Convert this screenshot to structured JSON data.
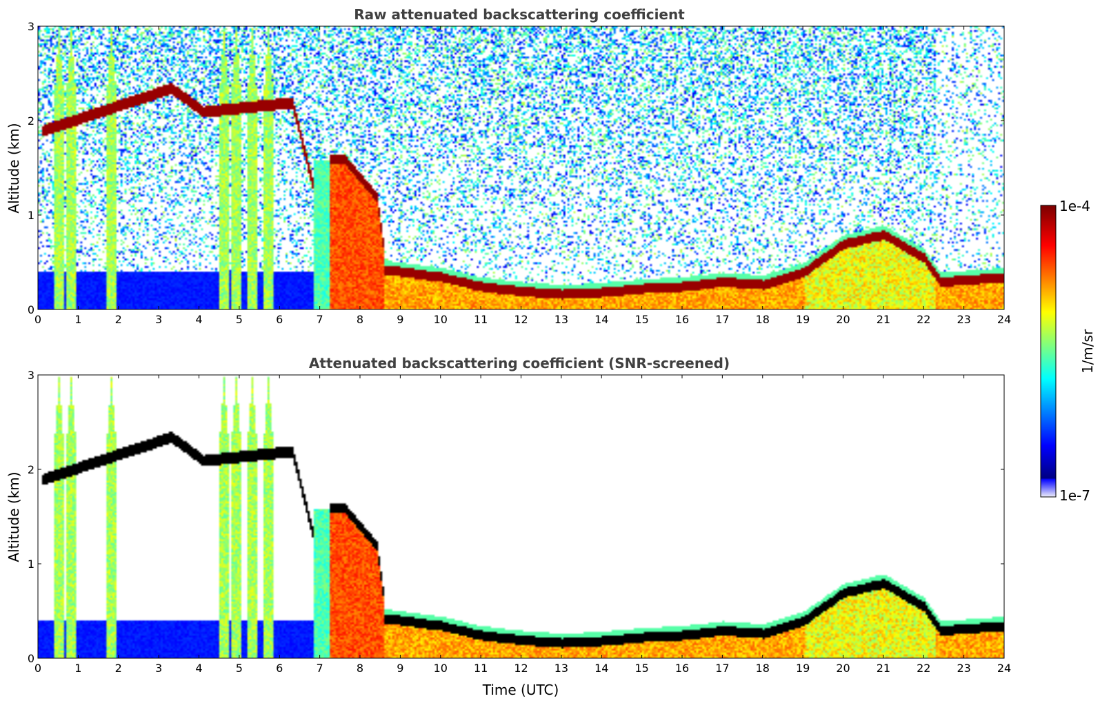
{
  "chart_data": [
    {
      "type": "heatmap",
      "title": "Raw attenuated backscattering coefficient",
      "xlabel": "",
      "ylabel": "Altitude (km)",
      "xlim": [
        0,
        24
      ],
      "ylim": [
        0,
        3
      ],
      "x_ticks": [
        "0",
        "1",
        "2",
        "3",
        "4",
        "5",
        "6",
        "7",
        "8",
        "9",
        "10",
        "11",
        "12",
        "13",
        "14",
        "15",
        "16",
        "17",
        "18",
        "19",
        "20",
        "21",
        "22",
        "23",
        "24"
      ],
      "y_ticks": [
        "0",
        "1",
        "2",
        "3"
      ],
      "variable": "raw",
      "features": {
        "boundary_layer_top_km": [
          [
            0,
            0.42
          ],
          [
            6.8,
            0.4
          ],
          [
            8.6,
            0.48
          ],
          [
            10,
            0.4
          ],
          [
            11,
            0.3
          ],
          [
            12,
            0.25
          ],
          [
            13,
            0.22
          ],
          [
            14,
            0.24
          ],
          [
            15,
            0.28
          ],
          [
            16,
            0.3
          ],
          [
            17,
            0.35
          ],
          [
            18,
            0.32
          ],
          [
            19,
            0.45
          ],
          [
            20,
            0.75
          ],
          [
            21,
            0.85
          ],
          [
            22,
            0.6
          ],
          [
            22.4,
            0.35
          ],
          [
            24,
            0.4
          ]
        ],
        "aerosol_layer_top_km": [
          [
            6.8,
            1.6
          ],
          [
            7.6,
            1.6
          ],
          [
            8.4,
            1.2
          ],
          [
            8.6,
            0.55
          ]
        ],
        "elevated_layer_km": [
          [
            0.1,
            1.9
          ],
          [
            3.3,
            2.35
          ],
          [
            4.1,
            2.1
          ],
          [
            6.3,
            2.2
          ],
          [
            6.8,
            1.35
          ]
        ],
        "rain_streaks_hour": [
          0.5,
          0.8,
          1.8,
          4.6,
          4.9,
          5.3,
          5.7,
          7.1
        ]
      }
    },
    {
      "type": "heatmap",
      "title": "Attenuated backscattering coefficient (SNR-screened)",
      "xlabel": "Time (UTC)",
      "ylabel": "Altitude (km)",
      "xlim": [
        0,
        24
      ],
      "ylim": [
        0,
        3
      ],
      "x_ticks": [
        "0",
        "1",
        "2",
        "3",
        "4",
        "5",
        "6",
        "7",
        "8",
        "9",
        "10",
        "11",
        "12",
        "13",
        "14",
        "15",
        "16",
        "17",
        "18",
        "19",
        "20",
        "21",
        "22",
        "23",
        "24"
      ],
      "y_ticks": [
        "0",
        "1",
        "2",
        "3"
      ],
      "variable": "screened"
    }
  ],
  "colorbar": {
    "max_label": "1e-4",
    "min_label": "1e-7",
    "unit_label": "1/m/sr",
    "colormap": "jet"
  }
}
